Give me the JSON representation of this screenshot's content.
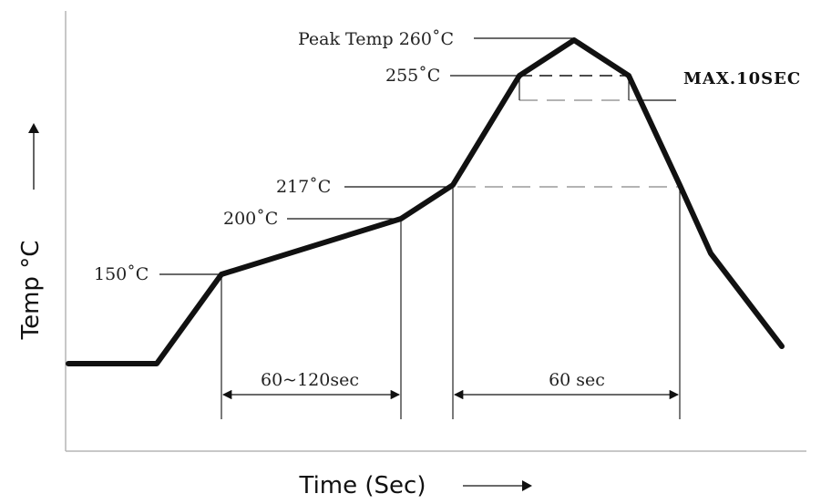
{
  "axes": {
    "x_title": "Time (Sec)",
    "y_title": "Temp °C"
  },
  "profile": {
    "levels": {
      "preheat_start": "150˚C",
      "preheat_end": "200˚C",
      "liquidus": "217˚C",
      "near_peak": "255˚C",
      "peak": "Peak Temp 260˚C"
    },
    "durations": {
      "soak": "60~120sec",
      "above_liquidus": "60 sec",
      "at_peak": "MAX.10SEC"
    }
  }
}
